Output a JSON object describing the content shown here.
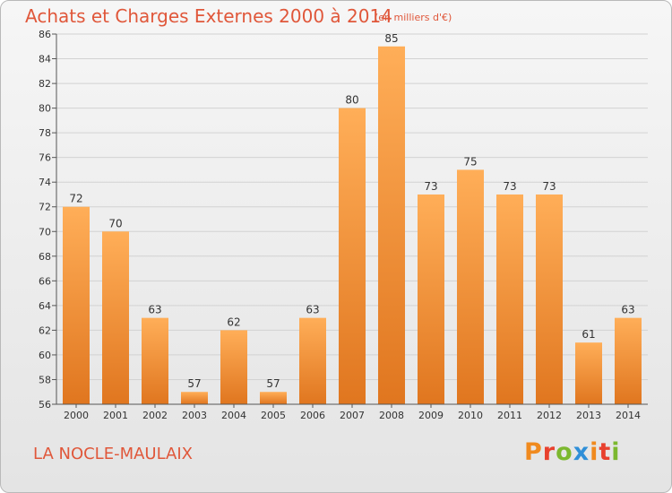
{
  "header": {
    "title": "Achats et Charges Externes 2000 à 2014",
    "subtitle": "(en milliers d'€)"
  },
  "footer": {
    "commune": "LA NOCLE-MAULAIX",
    "logo": [
      "P",
      "r",
      "o",
      "x",
      "i",
      "t",
      "i"
    ]
  },
  "colors": {
    "accent": "#e0573a",
    "bar_light": "#ffae58",
    "bar_dark": "#e0761f",
    "logo": [
      "#f08a1e",
      "#e8412e",
      "#7cb82f",
      "#2f8fd8",
      "#f08a1e",
      "#e8412e",
      "#7cb82f"
    ]
  },
  "chart_data": {
    "type": "bar",
    "categories": [
      "2000",
      "2001",
      "2002",
      "2003",
      "2004",
      "2005",
      "2006",
      "2007",
      "2008",
      "2009",
      "2010",
      "2011",
      "2012",
      "2013",
      "2014"
    ],
    "values": [
      72,
      70,
      63,
      57,
      62,
      57,
      63,
      80,
      85,
      73,
      75,
      73,
      73,
      61,
      63
    ],
    "title": "Achats et Charges Externes 2000 à 2014",
    "ylim": [
      56,
      86
    ],
    "yticks": [
      56,
      58,
      60,
      62,
      64,
      66,
      68,
      70,
      72,
      74,
      76,
      78,
      80,
      82,
      84,
      86
    ],
    "grid": true
  }
}
